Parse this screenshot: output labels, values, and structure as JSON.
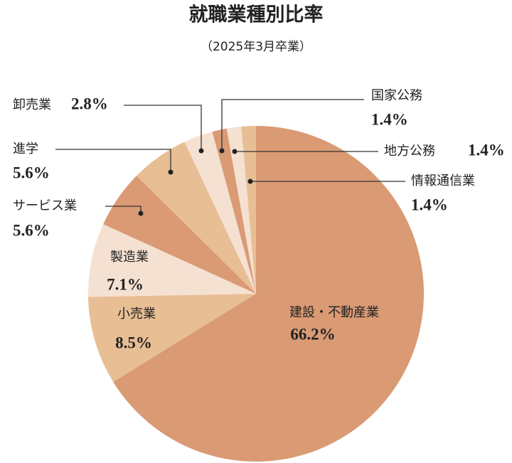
{
  "chart_data": {
    "type": "pie",
    "title": "就職業種別比率",
    "subtitle": "（2025年3月卒業）",
    "categories": [
      "建設・不動産業",
      "小売業",
      "製造業",
      "サービス業",
      "進学",
      "卸売業",
      "国家公務",
      "地方公務",
      "情報通信業"
    ],
    "values": [
      66.2,
      8.5,
      7.1,
      5.6,
      5.6,
      2.8,
      1.4,
      1.4,
      1.4
    ],
    "value_labels": [
      "66.2%",
      "8.5%",
      "7.1%",
      "5.6%",
      "5.6%",
      "2.8%",
      "1.4%",
      "1.4%",
      "1.4%"
    ],
    "colors": [
      "#d99a74",
      "#e8be94",
      "#f5e1d2",
      "#d99a74",
      "#e8be94",
      "#f5e1d2",
      "#d99a74",
      "#f5e1d2",
      "#e8be94"
    ]
  }
}
